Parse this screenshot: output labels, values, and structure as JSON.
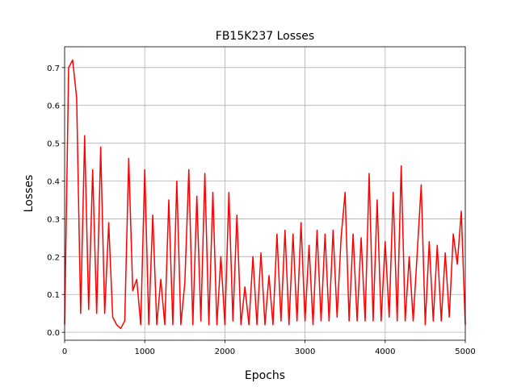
{
  "chart_data": {
    "type": "line",
    "title": "FB15K237 Losses",
    "x_label": "Epochs",
    "y_label": "Losses",
    "x": [
      0,
      50,
      100,
      150,
      200,
      250,
      300,
      350,
      400,
      450,
      500,
      550,
      600,
      650,
      700,
      750,
      800,
      850,
      900,
      950,
      1000,
      1050,
      1100,
      1150,
      1200,
      1250,
      1300,
      1350,
      1400,
      1450,
      1500,
      1550,
      1600,
      1650,
      1700,
      1750,
      1800,
      1850,
      1900,
      1950,
      2000,
      2050,
      2100,
      2150,
      2200,
      2250,
      2300,
      2350,
      2400,
      2450,
      2500,
      2550,
      2600,
      2650,
      2700,
      2750,
      2800,
      2850,
      2900,
      2950,
      3000,
      3050,
      3100,
      3150,
      3200,
      3250,
      3300,
      3350,
      3400,
      3450,
      3500,
      3550,
      3600,
      3650,
      3700,
      3750,
      3800,
      3850,
      3900,
      3950,
      4000,
      4050,
      4100,
      4150,
      4200,
      4250,
      4300,
      4350,
      4400,
      4450,
      4500,
      4550,
      4600,
      4650,
      4700,
      4750,
      4800,
      4850,
      4900,
      4950,
      5000
    ],
    "series": [
      {
        "name": "Losses",
        "color": "#ff0000",
        "values": [
          0.02,
          0.7,
          0.72,
          0.62,
          0.05,
          0.52,
          0.06,
          0.43,
          0.05,
          0.49,
          0.05,
          0.29,
          0.04,
          0.02,
          0.01,
          0.03,
          0.46,
          0.11,
          0.14,
          0.02,
          0.43,
          0.02,
          0.31,
          0.02,
          0.14,
          0.02,
          0.35,
          0.02,
          0.4,
          0.02,
          0.13,
          0.43,
          0.02,
          0.36,
          0.03,
          0.42,
          0.02,
          0.37,
          0.02,
          0.2,
          0.02,
          0.37,
          0.03,
          0.31,
          0.02,
          0.12,
          0.02,
          0.2,
          0.02,
          0.21,
          0.02,
          0.15,
          0.02,
          0.26,
          0.03,
          0.27,
          0.02,
          0.26,
          0.03,
          0.29,
          0.03,
          0.23,
          0.02,
          0.27,
          0.03,
          0.26,
          0.03,
          0.27,
          0.04,
          0.25,
          0.37,
          0.03,
          0.26,
          0.03,
          0.25,
          0.03,
          0.42,
          0.03,
          0.35,
          0.03,
          0.24,
          0.04,
          0.37,
          0.03,
          0.44,
          0.03,
          0.2,
          0.03,
          0.21,
          0.39,
          0.02,
          0.24,
          0.03,
          0.23,
          0.03,
          0.21,
          0.04,
          0.26,
          0.18,
          0.32,
          0.02
        ]
      }
    ],
    "xlim": [
      0,
      5000
    ],
    "xticks": [
      0,
      1000,
      2000,
      3000,
      4000,
      5000
    ],
    "ylim": [
      -0.021,
      0.755
    ],
    "yticks": [
      {
        "value": 0,
        "label": "0.0"
      },
      0.1,
      0.2,
      0.3,
      0.4,
      0.5,
      0.6,
      0.7
    ],
    "grid": true
  }
}
